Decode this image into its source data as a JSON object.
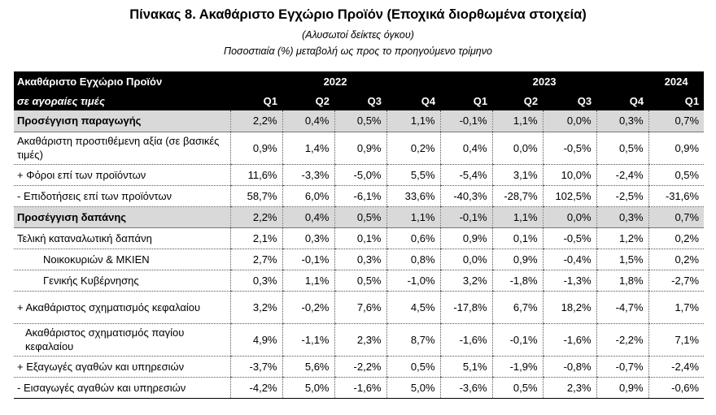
{
  "title": "Πίνακας 8. Ακαθάριστο Εγχώριο Προϊόν (Εποχικά διορθωμένα στοιχεία)",
  "subtitle1": "(Αλυσωτοί δείκτες όγκου)",
  "subtitle2": "Ποσοστιαία (%) μεταβολή ως προς το προηγούμενο τρίμηνο",
  "header": {
    "label1": "Ακαθάριστο Εγχώριο Προϊόν",
    "label2": "σε αγοραίες τιμές",
    "years": [
      "2022",
      "2023",
      "2024"
    ],
    "quarters": [
      "Q1",
      "Q2",
      "Q3",
      "Q4",
      "Q1",
      "Q2",
      "Q3",
      "Q4",
      "Q1"
    ]
  },
  "rows": [
    {
      "label": "Προσέγγιση παραγωγής",
      "values": [
        "2,2%",
        "0,4%",
        "0,5%",
        "1,1%",
        "-0,1%",
        "1,1%",
        "0,0%",
        "0,3%",
        "0,7%"
      ]
    },
    {
      "label": "Ακαθάριστη προστιθέμενη αξία (σε βασικές τιμές)",
      "values": [
        "0,9%",
        "1,4%",
        "0,9%",
        "0,2%",
        "0,4%",
        "0,0%",
        "-0,5%",
        "0,5%",
        "0,9%"
      ]
    },
    {
      "label": "+ Φόροι επί των προϊόντων",
      "values": [
        "11,6%",
        "-3,3%",
        "-5,0%",
        "5,5%",
        "-5,4%",
        "3,1%",
        "10,0%",
        "-2,4%",
        "0,5%"
      ]
    },
    {
      "label": "- Επιδοτήσεις επί των προϊόντων",
      "values": [
        "58,7%",
        "6,0%",
        "-6,1%",
        "33,6%",
        "-40,3%",
        "-28,7%",
        "102,5%",
        "-2,5%",
        "-31,6%"
      ]
    },
    {
      "label": "Προσέγγιση δαπάνης",
      "values": [
        "2,2%",
        "0,4%",
        "0,5%",
        "1,1%",
        "-0,1%",
        "1,1%",
        "0,0%",
        "0,3%",
        "0,7%"
      ]
    },
    {
      "label": "Τελική καταναλωτική δαπάνη",
      "values": [
        "2,1%",
        "0,3%",
        "0,1%",
        "0,6%",
        "0,9%",
        "0,1%",
        "-0,5%",
        "1,2%",
        "0,2%"
      ]
    },
    {
      "label": "Νοικοκυριών & ΜΚΙΕΝ",
      "values": [
        "2,7%",
        "-0,1%",
        "0,3%",
        "0,8%",
        "0,0%",
        "0,9%",
        "-0,4%",
        "1,5%",
        "0,2%"
      ]
    },
    {
      "label": "Γενικής Κυβέρνησης",
      "values": [
        "0,3%",
        "1,1%",
        "0,5%",
        "-1,0%",
        "3,2%",
        "-1,8%",
        "-1,3%",
        "1,8%",
        "-2,7%"
      ]
    },
    {
      "label": "+ Ακαθάριστος σχηματισμός κεφαλαίου",
      "values": [
        "3,2%",
        "-0,2%",
        "7,6%",
        "4,5%",
        "-17,8%",
        "6,7%",
        "18,2%",
        "-4,7%",
        "1,7%"
      ]
    },
    {
      "label": "Ακαθάριστος σχηματισμός παγίου κεφαλαίου",
      "values": [
        "4,9%",
        "-1,1%",
        "2,3%",
        "8,7%",
        "-1,6%",
        "-0,1%",
        "-1,6%",
        "-2,2%",
        "7,1%"
      ]
    },
    {
      "label": "+ Εξαγωγές αγαθών και υπηρεσιών",
      "values": [
        "-3,7%",
        "5,6%",
        "-2,2%",
        "0,5%",
        "5,1%",
        "-1,9%",
        "-0,8%",
        "-0,7%",
        "-2,4%"
      ]
    },
    {
      "label": "- Εισαγωγές αγαθών και υπηρεσιών",
      "values": [
        "-4,2%",
        "5,0%",
        "-1,6%",
        "5,0%",
        "-3,6%",
        "0,5%",
        "2,3%",
        "0,9%",
        "-0,6%"
      ]
    }
  ]
}
